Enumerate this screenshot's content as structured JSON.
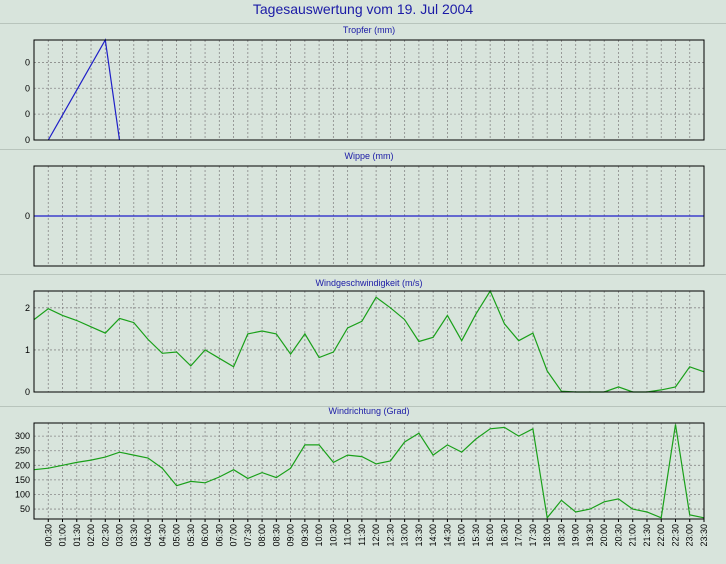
{
  "title": "Tagesauswertung vom 19. Jul 2004",
  "colors": {
    "background": "#d8e4dc",
    "blue": "#1f1fc8",
    "green": "#1aa01a",
    "grid": "#888888"
  },
  "x_ticks": [
    "00:30",
    "01:00",
    "01:30",
    "02:00",
    "02:30",
    "03:00",
    "03:30",
    "04:00",
    "04:30",
    "05:00",
    "05:30",
    "06:00",
    "06:30",
    "07:00",
    "07:30",
    "08:00",
    "08:30",
    "09:00",
    "09:30",
    "10:00",
    "10:30",
    "11:00",
    "11:30",
    "12:00",
    "12:30",
    "13:00",
    "13:30",
    "14:00",
    "14:30",
    "15:00",
    "15:30",
    "16:00",
    "16:30",
    "17:00",
    "17:30",
    "18:00",
    "18:30",
    "19:00",
    "19:30",
    "20:00",
    "20:30",
    "21:00",
    "21:30",
    "22:00",
    "22:30",
    "23:00",
    "23:30"
  ],
  "chart_data": [
    {
      "type": "line",
      "title": "Tropfer (mm)",
      "yticks": [
        {
          "value": 0,
          "label": "0"
        },
        {
          "value": 0.03,
          "label": "0"
        },
        {
          "value": 0.06,
          "label": "0"
        },
        {
          "value": 0.09,
          "label": "0"
        }
      ],
      "ylim": [
        0,
        0.116
      ],
      "color": "#1f1fc8",
      "series": [
        {
          "x": [
            0.5,
            2.5,
            3.0
          ],
          "y": [
            0,
            0.116,
            0
          ]
        }
      ]
    },
    {
      "type": "line",
      "title": "Wippe (mm)",
      "yticks": [
        {
          "value": 0,
          "label": "0"
        }
      ],
      "ylim": [
        -1,
        1
      ],
      "color": "#1f1fc8",
      "series": [
        {
          "x": [
            0,
            23.5
          ],
          "y": [
            0,
            0
          ]
        }
      ]
    },
    {
      "type": "line",
      "title": "Windgeschwindigkeit (m/s)",
      "yticks": [
        {
          "value": 0,
          "label": "0"
        },
        {
          "value": 1,
          "label": "1"
        },
        {
          "value": 2,
          "label": "2"
        }
      ],
      "ylim": [
        0,
        2.4
      ],
      "color": "#1aa01a",
      "series": [
        {
          "x": [
            0,
            0.5,
            1,
            1.5,
            2,
            2.5,
            3,
            3.5,
            4,
            4.5,
            5,
            5.5,
            6,
            6.5,
            7,
            7.5,
            8,
            8.5,
            9,
            9.5,
            10,
            10.5,
            11,
            11.5,
            12,
            12.5,
            13,
            13.5,
            14,
            14.5,
            15,
            15.5,
            16,
            16.5,
            17,
            17.5,
            18,
            18.5,
            19,
            19.5,
            20,
            20.5,
            21,
            21.5,
            22,
            22.5,
            23,
            23.5
          ],
          "y": [
            1.72,
            1.98,
            1.82,
            1.7,
            1.55,
            1.4,
            1.75,
            1.65,
            1.25,
            0.92,
            0.95,
            0.62,
            1.0,
            0.8,
            0.6,
            1.38,
            1.45,
            1.38,
            0.9,
            1.38,
            0.82,
            0.95,
            1.52,
            1.68,
            2.25,
            2.0,
            1.72,
            1.2,
            1.3,
            1.82,
            1.22,
            1.85,
            2.4,
            1.62,
            1.22,
            1.4,
            0.5,
            0.02,
            0.0,
            0.0,
            0.0,
            0.12,
            0.0,
            0.0,
            0.05,
            0.12,
            0.6,
            0.48
          ]
        }
      ]
    },
    {
      "type": "line",
      "title": "Windrichtung (Grad)",
      "yticks": [
        {
          "value": 50,
          "label": "50"
        },
        {
          "value": 100,
          "label": "100"
        },
        {
          "value": 150,
          "label": "150"
        },
        {
          "value": 200,
          "label": "200"
        },
        {
          "value": 250,
          "label": "250"
        },
        {
          "value": 300,
          "label": "300"
        }
      ],
      "ylim": [
        16,
        345
      ],
      "color": "#1aa01a",
      "series": [
        {
          "x": [
            0,
            0.5,
            1,
            1.5,
            2,
            2.5,
            3,
            3.5,
            4,
            4.5,
            5,
            5.5,
            6,
            6.5,
            7,
            7.5,
            8,
            8.5,
            9,
            9.5,
            10,
            10.5,
            11,
            11.5,
            12,
            12.5,
            13,
            13.5,
            14,
            14.5,
            15,
            15.5,
            16,
            16.5,
            17,
            17.5,
            18,
            18.5,
            19,
            19.5,
            20,
            20.5,
            21,
            21.5,
            22,
            22.5,
            23,
            23.5
          ],
          "y": [
            185,
            190,
            200,
            210,
            218,
            228,
            245,
            235,
            225,
            190,
            130,
            145,
            140,
            160,
            185,
            155,
            175,
            158,
            190,
            270,
            270,
            210,
            235,
            230,
            205,
            215,
            280,
            310,
            235,
            270,
            245,
            290,
            325,
            330,
            300,
            325,
            20,
            80,
            40,
            50,
            75,
            85,
            50,
            40,
            20,
            340,
            30,
            20
          ]
        }
      ]
    }
  ]
}
